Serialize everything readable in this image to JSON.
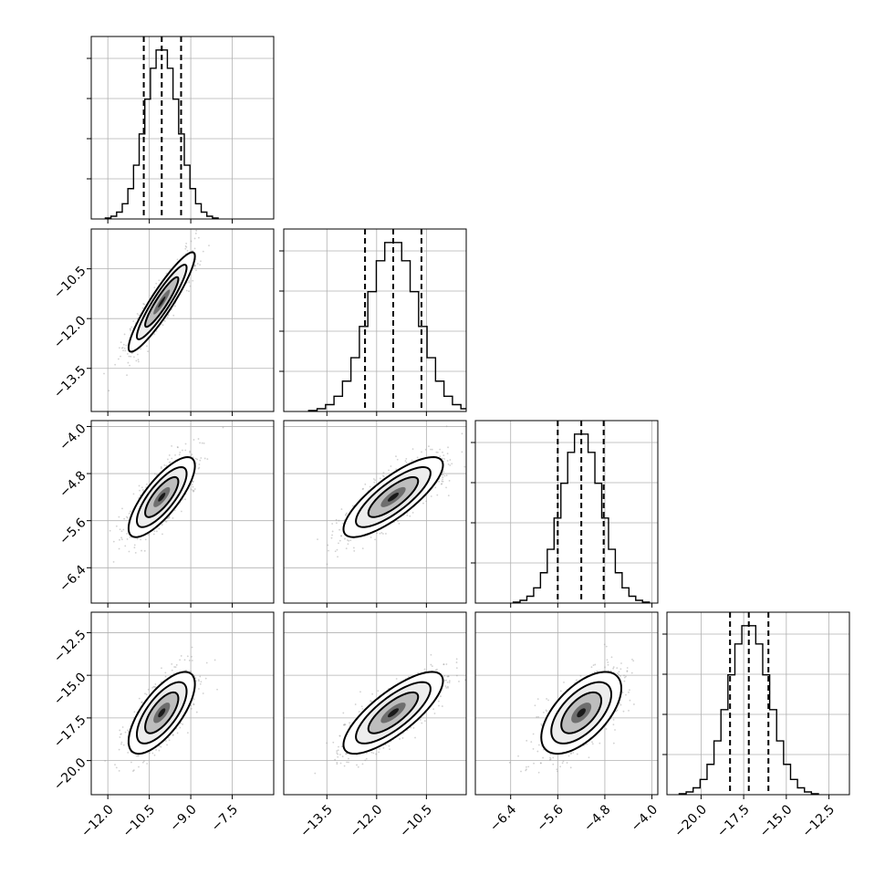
{
  "chart_data": {
    "type": "corner",
    "grid": true,
    "params": [
      {
        "range": [
          -12.6,
          -6.0
        ],
        "ticks": [
          -12.0,
          -10.5,
          -9.0,
          -7.5
        ],
        "tick_labels": [
          "−12.0",
          "−10.5",
          "−9.0",
          "−7.5"
        ],
        "mean": -10.05,
        "sd": 0.6,
        "quantiles": [
          -10.7,
          -10.05,
          -9.35
        ]
      },
      {
        "range": [
          -14.8,
          -9.3
        ],
        "ticks": [
          -13.5,
          -12.0,
          -10.5
        ],
        "tick_labels": [
          "−13.5",
          "−12.0",
          "−10.5"
        ],
        "mean": -11.5,
        "sd": 0.75,
        "quantiles": [
          -12.35,
          -11.5,
          -10.65
        ]
      },
      {
        "range": [
          -7.0,
          -3.9
        ],
        "ticks": [
          -6.4,
          -5.6,
          -4.8,
          -4.0
        ],
        "tick_labels": [
          "−6.4",
          "−5.6",
          "−4.8",
          "−4.0"
        ],
        "mean": -5.2,
        "sd": 0.34,
        "quantiles": [
          -5.6,
          -5.2,
          -4.82
        ]
      },
      {
        "range": [
          -22.0,
          -11.3
        ],
        "ticks": [
          -20.0,
          -17.5,
          -15.0,
          -12.5
        ],
        "tick_labels": [
          "−20.0",
          "−17.5",
          "−15.0",
          "−12.5"
        ],
        "mean": -17.2,
        "sd": 1.2,
        "quantiles": [
          -18.3,
          -17.2,
          -16.05
        ]
      }
    ],
    "correlations": [
      [
        1,
        0.92,
        0.78,
        0.7
      ],
      [
        0.92,
        1,
        0.8,
        0.78
      ],
      [
        0.78,
        0.8,
        1,
        0.6
      ],
      [
        0.7,
        0.78,
        0.6,
        1
      ]
    ],
    "hist_bins": 20,
    "contour_levels_sigma": [
      0.5,
      1.0,
      1.5,
      2.0
    ]
  }
}
